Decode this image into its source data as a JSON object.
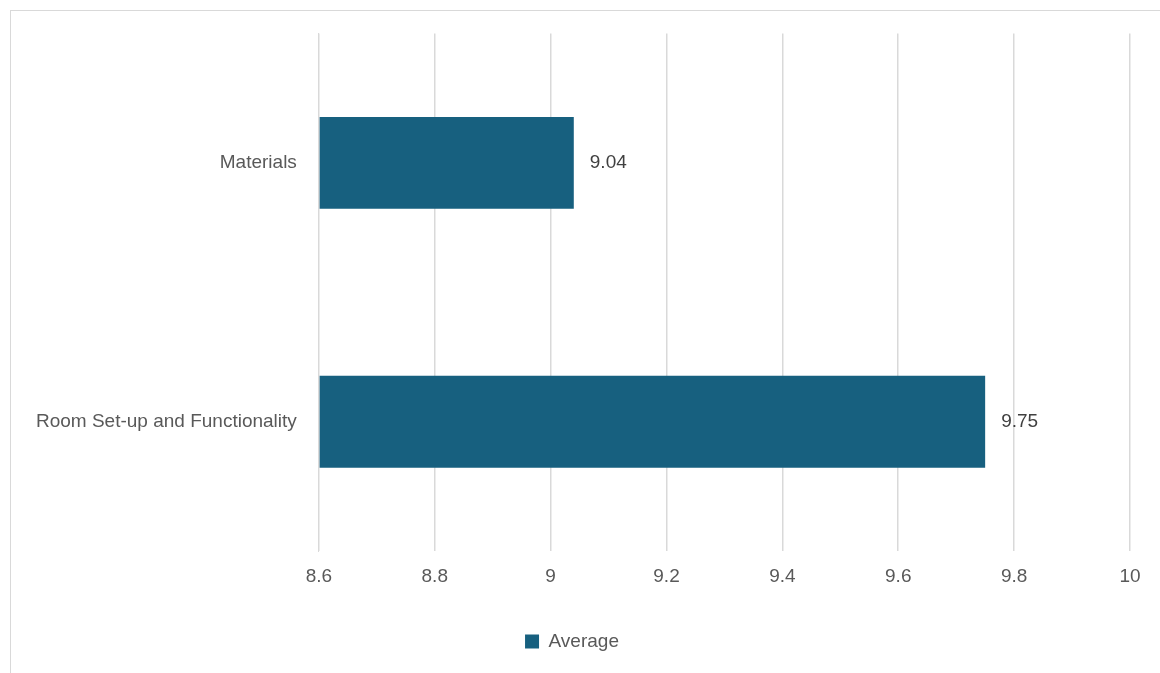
{
  "chart_data": {
    "type": "bar",
    "orientation": "horizontal",
    "categories": [
      "Materials",
      "Room Set-up and Functionality"
    ],
    "series": [
      {
        "name": "Average",
        "color": "#17607f",
        "values": [
          9.04,
          9.75
        ]
      }
    ],
    "xlim": [
      8.6,
      10
    ],
    "xticks": [
      8.6,
      8.8,
      9,
      9.2,
      9.4,
      9.6,
      9.8,
      10
    ],
    "grid": "x",
    "legend": "bottom",
    "data_labels": true
  }
}
